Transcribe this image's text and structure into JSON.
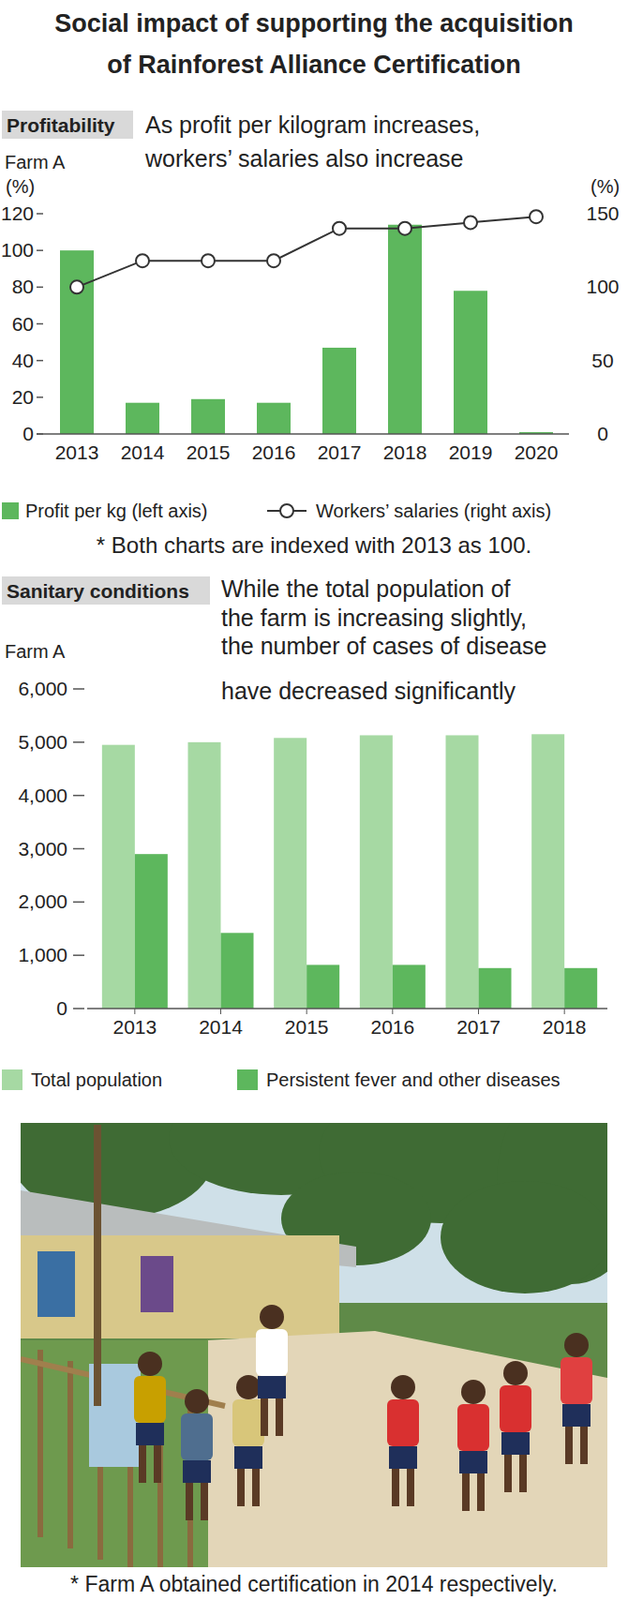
{
  "header": {
    "title": [
      "Social impact of supporting the acquisition",
      "of Rainforest Alliance Certification"
    ]
  },
  "chart_data": [
    {
      "type": "bar",
      "tag": "Profitability",
      "subtitle": [
        "As profit per kilogram increases,",
        "workers’ salaries also increase"
      ],
      "label": "Farm A",
      "y_label": "(%)",
      "y2_label": "(%)",
      "note": "* Both charts are indexed with 2013 as 100.",
      "categories": [
        "2013",
        "2014",
        "2015",
        "2016",
        "2017",
        "2018",
        "2019",
        "2020"
      ],
      "series": [
        {
          "name": "Profit per kg (left axis)",
          "type": "bar",
          "color": "#5db75d",
          "values": [
            100,
            17,
            19,
            17,
            47,
            114,
            78,
            1
          ]
        },
        {
          "name": "Workers’ salaries (right axis)",
          "type": "line",
          "axis": "y2",
          "color": "#333333",
          "marker": "circle",
          "line_style": "solid",
          "values": [
            100,
            118,
            118,
            118,
            140,
            140,
            144,
            148
          ]
        }
      ],
      "ylim": [
        0,
        120
      ],
      "yticks": [
        0,
        20,
        40,
        60,
        80,
        100,
        120
      ],
      "y2lim": [
        0,
        150
      ],
      "y2ticks": [
        0,
        50,
        100,
        150
      ],
      "grid": false,
      "legend": "bottom"
    },
    {
      "type": "bar",
      "tag": "Sanitary conditions",
      "subtitle": [
        "While the total population of",
        "the farm is increasing slightly,",
        "the number of cases of disease",
        "have decreased significantly"
      ],
      "label": "Farm A",
      "categories": [
        "2013",
        "2014",
        "2015",
        "2016",
        "2017",
        "2018"
      ],
      "series": [
        {
          "name": "Total population",
          "color": "#a6d9a3",
          "values": [
            4950,
            5000,
            5080,
            5130,
            5130,
            5150
          ]
        },
        {
          "name": "Persistent fever and other diseases",
          "color": "#5db75d",
          "values": [
            2900,
            1420,
            820,
            820,
            760,
            760
          ]
        }
      ],
      "ylim": [
        0,
        6000
      ],
      "yticks": [
        0,
        {
          "value": 1000,
          "label": "1,000"
        },
        {
          "value": 2000,
          "label": "2,000"
        },
        {
          "value": 3000,
          "label": "3,000"
        },
        {
          "value": 4000,
          "label": "4,000"
        },
        {
          "value": 5000,
          "label": "5,000"
        },
        {
          "value": 6000,
          "label": "6,000"
        }
      ],
      "grid": false,
      "legend": "bottom"
    }
  ],
  "footer": {
    "caption": "* Farm A obtained certification in 2014 respectively."
  }
}
